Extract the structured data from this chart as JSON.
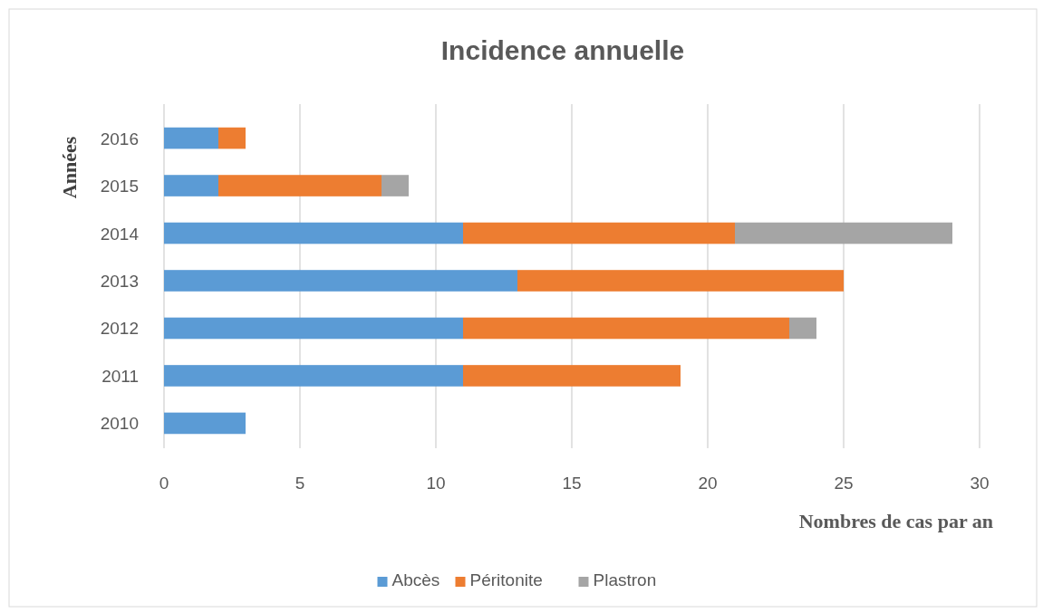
{
  "chart_data": {
    "type": "bar",
    "orientation": "horizontal",
    "stacked": true,
    "title": "Incidence annuelle",
    "xlabel": "Nombres de cas par an",
    "ylabel": "Années",
    "categories": [
      "2016",
      "2015",
      "2014",
      "2013",
      "2012",
      "2011",
      "2010"
    ],
    "series": [
      {
        "name": "Abcès",
        "color": "#5b9bd5",
        "values": [
          2,
          2,
          11,
          13,
          11,
          11,
          3
        ]
      },
      {
        "name": "Péritonite",
        "color": "#ed7d31",
        "values": [
          1,
          6,
          10,
          12,
          12,
          8,
          null
        ]
      },
      {
        "name": "Plastron",
        "color": "#a5a5a5",
        "values": [
          null,
          1,
          8,
          null,
          1,
          null,
          null
        ]
      }
    ],
    "xlim": [
      0,
      30
    ],
    "xticks": [
      0,
      5,
      10,
      15,
      20,
      25,
      30
    ],
    "grid": "x",
    "legend": "bottom"
  }
}
